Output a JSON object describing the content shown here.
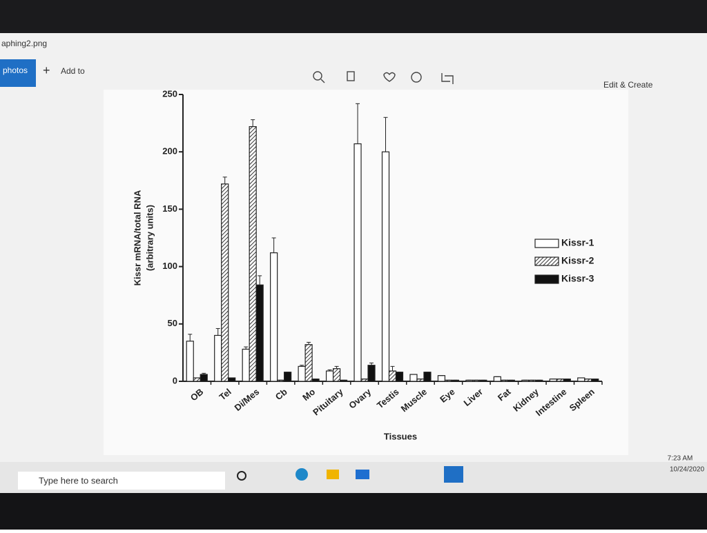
{
  "window": {
    "filename": "aphing2.png",
    "tab": "photos",
    "add_to": "Add to",
    "edit_create": "Edit & Create"
  },
  "taskbar": {
    "search": "Type here to search",
    "time": "7:23 AM",
    "date": "10/24/2020"
  },
  "chart_data": {
    "type": "bar",
    "ylabel": [
      "Kissr mRNA/total RNA",
      "(arbitrary units)"
    ],
    "xlabel": "Tissues",
    "categories": [
      "OB",
      "Tel",
      "Di/Mes",
      "Cb",
      "Mo",
      "Pituitary",
      "Ovary",
      "Testis",
      "Muscle",
      "Eye",
      "Liver",
      "Fat",
      "Kidney",
      "Intestine",
      "Spleen"
    ],
    "series": [
      {
        "name": "Kissr-1",
        "color": "#ffffff",
        "hatch": false,
        "values": [
          35,
          40,
          28,
          112,
          13,
          9,
          207,
          200,
          6,
          5,
          1,
          4,
          1,
          2,
          3
        ],
        "errors": [
          6,
          6,
          2,
          13,
          1,
          1,
          35,
          30,
          0,
          0,
          0,
          0,
          0,
          0,
          0
        ]
      },
      {
        "name": "Kissr-2",
        "color": "#555555",
        "hatch": true,
        "values": [
          3,
          172,
          222,
          1,
          32,
          11,
          2,
          9,
          2,
          1,
          1,
          1,
          1,
          2,
          2
        ],
        "errors": [
          0,
          6,
          6,
          0,
          2,
          2,
          0,
          4,
          0,
          0,
          0,
          0,
          0,
          0,
          0
        ]
      },
      {
        "name": "Kissr-3",
        "color": "#111111",
        "hatch": false,
        "values": [
          6,
          3,
          84,
          8,
          2,
          1,
          14,
          8,
          8,
          1,
          1,
          1,
          1,
          2,
          2
        ],
        "errors": [
          1,
          0,
          8,
          0,
          0,
          0,
          2,
          0,
          0,
          0,
          0,
          0,
          0,
          0,
          0
        ]
      }
    ],
    "ylim": [
      0,
      250
    ],
    "yticks": [
      0,
      50,
      100,
      150,
      200,
      250
    ],
    "grid": false,
    "legend": "right"
  }
}
